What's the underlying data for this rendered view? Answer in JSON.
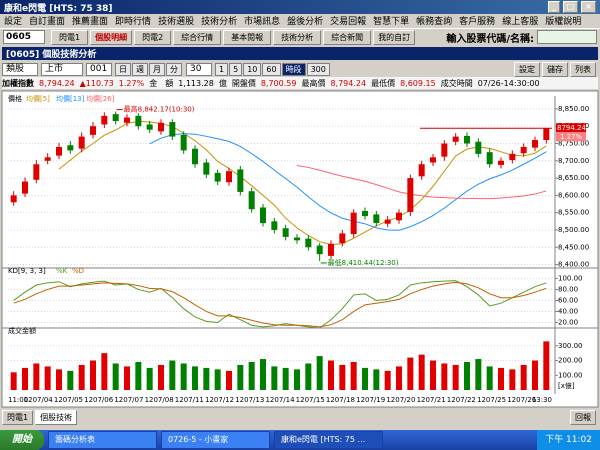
{
  "window": {
    "title": "康和e閃電 [HTS: 75 38]"
  },
  "menu": [
    "設定",
    "自訂畫面",
    "推薦畫面",
    "即時行情",
    "技術選股",
    "技術分析",
    "市場訊息",
    "盤後分析",
    "交易回報",
    "智慧下單",
    "帳務查詢",
    "客戶服務",
    "線上客服",
    "版權說明"
  ],
  "toolbar": {
    "code": "0605",
    "buttons": [
      "閃電1",
      "個股明細",
      "閃電2",
      "綜合行情",
      "基本閱報",
      "技術分析",
      "綜合新聞"
    ],
    "favorite": "我的自訂",
    "search_label": "輸入股票代碼/名稱:"
  },
  "subwindow": {
    "title": "[0605] 個股技術分析",
    "controls": {
      "category": "類股",
      "market": "上市",
      "group": "001",
      "periods": [
        "日",
        "週",
        "月",
        "分"
      ],
      "minutes": "30",
      "intervals": [
        "1",
        "5",
        "10",
        "60",
        "時段",
        "300"
      ],
      "actions": [
        "設定",
        "儲存",
        "列表"
      ]
    }
  },
  "quote": {
    "name": "加權指數",
    "price": "8,794.24",
    "change": "▲110.73",
    "percent": "1.27%",
    "amount_label": "金　額",
    "amount": "1,113.28",
    "amount_unit": "億",
    "open_label": "開盤價",
    "open": "8,700.59",
    "high_label": "最高價",
    "high": "8,794.24",
    "low_label": "最低價",
    "low": "8,609.15",
    "time_label": "成交時間",
    "time": "07/26-14:30:00"
  },
  "chart_data": [
    {
      "type": "candlestick",
      "legend_title": "價格",
      "open": [
        8580,
        8605,
        8645,
        8700,
        8715,
        8745,
        8735,
        8775,
        8805,
        8835,
        8810,
        8830,
        8805,
        8785,
        8812,
        8775,
        8735,
        8695,
        8665,
        8638,
        8675,
        8612,
        8565,
        8525,
        8505,
        8478,
        8475,
        8455,
        8425,
        8462,
        8488,
        8555,
        8545,
        8518,
        8528,
        8552,
        8655,
        8695,
        8712,
        8755,
        8772,
        8755,
        8725,
        8688,
        8702,
        8722,
        8738,
        8760
      ],
      "high": [
        8612,
        8652,
        8702,
        8722,
        8752,
        8757,
        8782,
        8812,
        8840,
        8842.17,
        8835,
        8838,
        8815,
        8820,
        8820,
        8785,
        8745,
        8705,
        8675,
        8680,
        8685,
        8622,
        8575,
        8535,
        8515,
        8488,
        8485,
        8462,
        8470,
        8500,
        8560,
        8565,
        8555,
        8540,
        8560,
        8660,
        8700,
        8720,
        8760,
        8780,
        8782,
        8765,
        8735,
        8710,
        8730,
        8750,
        8770,
        8794.24
      ],
      "low": [
        8570,
        8595,
        8635,
        8690,
        8705,
        8720,
        8725,
        8765,
        8795,
        8805,
        8800,
        8790,
        8780,
        8775,
        8760,
        8720,
        8680,
        8650,
        8630,
        8628,
        8600,
        8550,
        8510,
        8490,
        8470,
        8460,
        8440,
        8410.44,
        8415,
        8452,
        8478,
        8530,
        8510,
        8508,
        8518,
        8540,
        8645,
        8685,
        8700,
        8745,
        8740,
        8710,
        8680,
        8678,
        8692,
        8712,
        8728,
        8750
      ],
      "close": [
        8600,
        8640,
        8690,
        8710,
        8740,
        8730,
        8770,
        8800,
        8830,
        8815,
        8825,
        8800,
        8790,
        8810,
        8770,
        8730,
        8690,
        8660,
        8640,
        8670,
        8610,
        8560,
        8520,
        8500,
        8480,
        8470,
        8450,
        8430,
        8460,
        8490,
        8550,
        8540,
        8520,
        8530,
        8550,
        8650,
        8690,
        8710,
        8750,
        8770,
        8750,
        8720,
        8690,
        8700,
        8720,
        8740,
        8760,
        8794.24
      ],
      "up_color": "#e00000",
      "down_color": "#008000",
      "moving_averages": [
        {
          "name": "均價[5]",
          "period": 5,
          "color": "#c89000"
        },
        {
          "name": "均價[13]",
          "period": 13,
          "color": "#1e90ff"
        },
        {
          "name": "均價[26]",
          "period": 26,
          "color": "#ff6070"
        }
      ],
      "ylim": [
        8390,
        8870
      ],
      "yticks": [
        {
          "value": 8850,
          "label": "8,850.00"
        },
        {
          "value": 8800,
          "label": "8,800.00"
        },
        {
          "value": 8750,
          "label": "8,750.00"
        },
        {
          "value": 8700,
          "label": "8,700.00"
        },
        {
          "value": 8650,
          "label": "8,650.00"
        },
        {
          "value": 8600,
          "label": "8,600.00"
        },
        {
          "value": 8550,
          "label": "8,550.00"
        },
        {
          "value": 8500,
          "label": "8,500.00"
        },
        {
          "value": 8450,
          "label": "8,450.00"
        },
        {
          "value": 8400,
          "label": "8,400.00"
        }
      ],
      "annotations": [
        "最高8,842.17(10:30)",
        "最低8,410.44(12:30)"
      ],
      "last_label": "8794.24",
      "last_change_label": "1.27%",
      "grid": true
    },
    {
      "type": "line",
      "title": "KD[9, 3, 3]",
      "series": [
        {
          "name": "%K",
          "color": "#5a9a20",
          "values": [
            60,
            75,
            88,
            92,
            94,
            85,
            90,
            93,
            95,
            88,
            90,
            80,
            75,
            82,
            65,
            45,
            30,
            22,
            20,
            35,
            25,
            15,
            12,
            14,
            18,
            15,
            12,
            10,
            25,
            45,
            70,
            72,
            60,
            62,
            70,
            88,
            92,
            94,
            95,
            96,
            85,
            70,
            50,
            55,
            65,
            75,
            85,
            92
          ]
        },
        {
          "name": "%D",
          "color": "#c06000",
          "values": [
            55,
            62,
            72,
            80,
            86,
            86,
            88,
            90,
            92,
            91,
            90,
            87,
            82,
            81,
            76,
            65,
            52,
            40,
            32,
            32,
            29,
            24,
            19,
            16,
            15,
            15,
            14,
            12,
            16,
            25,
            40,
            52,
            55,
            58,
            62,
            72,
            80,
            86,
            90,
            93,
            90,
            83,
            72,
            65,
            65,
            69,
            75,
            82
          ]
        }
      ],
      "ylim": [
        10,
        108
      ],
      "yticks": [
        {
          "value": 100,
          "label": "100.00"
        },
        {
          "value": 80,
          "label": "80.00"
        },
        {
          "value": 60,
          "label": "60.00"
        },
        {
          "value": 40,
          "label": "40.00"
        },
        {
          "value": 20,
          "label": "20.00"
        }
      ],
      "grid": true
    },
    {
      "type": "bar",
      "title": "成交金額",
      "values": [
        120,
        150,
        180,
        160,
        140,
        130,
        170,
        200,
        250,
        180,
        160,
        190,
        150,
        170,
        200,
        180,
        160,
        150,
        140,
        130,
        170,
        190,
        210,
        160,
        150,
        140,
        180,
        230,
        200,
        170,
        190,
        150,
        140,
        130,
        160,
        220,
        240,
        200,
        180,
        170,
        190,
        210,
        160,
        150,
        140,
        170,
        200,
        330
      ],
      "ylim": [
        0,
        380
      ],
      "yticks": [
        {
          "value": 300,
          "label": "300.00"
        },
        {
          "value": 200,
          "label": "200.00"
        },
        {
          "value": 100,
          "label": "100.00"
        }
      ],
      "unit_label": "[x億]",
      "grid": true
    }
  ],
  "x_labels": [
    "11:00",
    "1207/04",
    "1207/05",
    "1207/06",
    "1207/07",
    "1207/08",
    "1207/11",
    "1207/12",
    "1207/13",
    "1207/14",
    "1207/15",
    "1207/18",
    "1207/19",
    "1207/20",
    "1207/21",
    "1207/22",
    "1207/25",
    "1207/26",
    "13:30"
  ],
  "tabs": [
    "閃電1",
    "個股技術"
  ],
  "status_right": "回報",
  "taskbar": {
    "start": "開始",
    "tasks": [
      "籌碼分析表",
      "0726-5 - 小畫家",
      "康和e閃電 [HTS: 75 ..."
    ],
    "clock": "下午 11:02"
  }
}
